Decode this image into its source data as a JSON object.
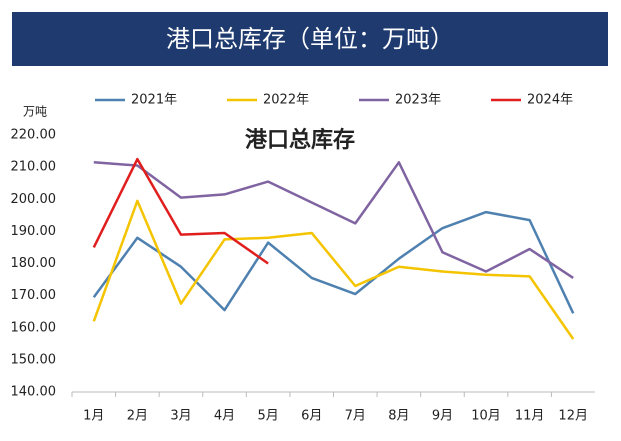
{
  "chart_data": {
    "type": "line",
    "title": "港口总库存（单位：万吨）",
    "subtitle": "港口总库存",
    "y_label": "万吨",
    "categories": [
      "1月",
      "2月",
      "3月",
      "4月",
      "5月",
      "6月",
      "7月",
      "8月",
      "9月",
      "10月",
      "11月",
      "12月"
    ],
    "series": [
      {
        "name": "2021年",
        "color": "#4f81b0",
        "values": [
          169.5,
          188,
          179,
          165.5,
          186.5,
          175.5,
          170.5,
          181.5,
          191,
          196,
          193.5,
          164.5
        ]
      },
      {
        "name": "2022年",
        "color": "#f5c400",
        "values": [
          162,
          199.5,
          167.5,
          187.5,
          188,
          189.5,
          173,
          179,
          177.5,
          176.5,
          176,
          156.5
        ]
      },
      {
        "name": "2023年",
        "color": "#8064a2",
        "values": [
          211.5,
          210.5,
          200.5,
          201.5,
          205.5,
          199,
          192.5,
          211.5,
          183.5,
          177.5,
          184.5,
          175.5
        ]
      },
      {
        "name": "2024年",
        "color": "#e01e1e",
        "values": [
          185,
          212.5,
          189,
          189.5,
          180,
          null,
          null,
          null,
          null,
          null,
          null,
          null
        ]
      }
    ],
    "ylim": [
      140,
      220
    ],
    "yticks": [
      {
        "value": 140,
        "label": "140.00"
      },
      {
        "value": 150,
        "label": "150.00"
      },
      {
        "value": 160,
        "label": "160.00"
      },
      {
        "value": 170,
        "label": "170.00"
      },
      {
        "value": 180,
        "label": "180.00"
      },
      {
        "value": 190,
        "label": "190.00"
      },
      {
        "value": 200,
        "label": "200.00"
      },
      {
        "value": 210,
        "label": "210.00"
      },
      {
        "value": 220,
        "label": "220.00"
      }
    ],
    "legend": "top"
  }
}
